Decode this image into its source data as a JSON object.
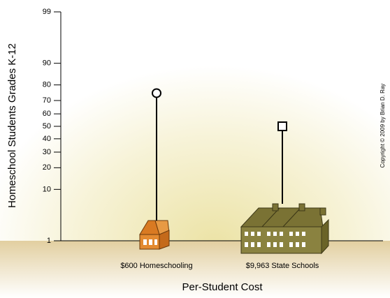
{
  "chart_data": {
    "type": "lollipop",
    "y_label": "Homeschool Students Grades K-12",
    "x_label": "Per-Student Cost",
    "copyright": "Copyright © 2009 by Brian D. Ray",
    "categories": [
      "$600 Homeschooling",
      "$9,963 State Schools"
    ],
    "values": [
      75,
      50
    ],
    "markers": [
      "circle",
      "square"
    ],
    "color": "#000000",
    "yscale": "probit",
    "ylim": [
      1,
      99
    ],
    "yticks": [
      1,
      10,
      20,
      30,
      40,
      50,
      60,
      70,
      80,
      90,
      99
    ]
  }
}
